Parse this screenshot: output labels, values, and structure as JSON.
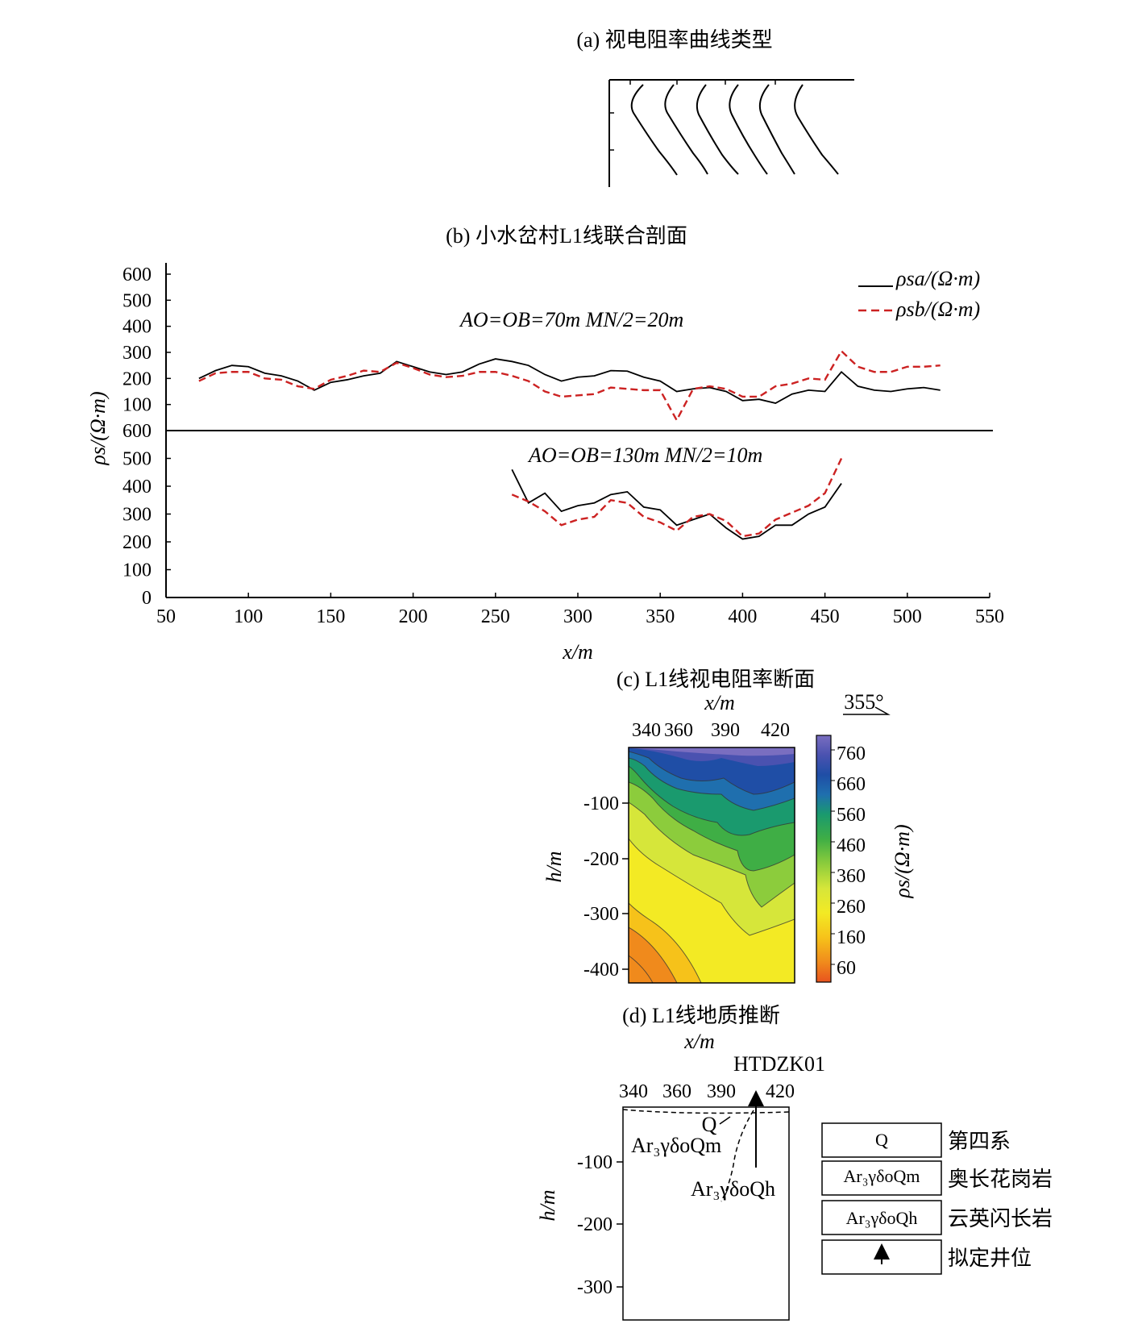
{
  "panel_a": {
    "title": "(a) 视电阻率曲线类型"
  },
  "panel_b": {
    "title": "(b) 小水岔村L1线联合剖面",
    "ylabel": "ρs/(Ω·m)",
    "xlabel": "x/m",
    "upper_annotation": "AO=OB=70m MN/2=20m",
    "lower_annotation": "AO=OB=130m MN/2=10m",
    "legend": [
      {
        "label": "ρsa/(Ω·m)",
        "color": "#000000",
        "dash": "solid"
      },
      {
        "label": "ρsb/(Ω·m)",
        "color": "#cc2222",
        "dash": "dashed"
      }
    ],
    "x_ticks": [
      "50",
      "100",
      "150",
      "200",
      "250",
      "300",
      "350",
      "400",
      "450",
      "500",
      "550"
    ],
    "y_ticks_upper": [
      "100",
      "200",
      "300",
      "400",
      "500",
      "600"
    ],
    "y_ticks_lower": [
      "0",
      "100",
      "200",
      "300",
      "400",
      "500",
      "600"
    ]
  },
  "panel_c": {
    "title": "(c) L1线视电阻率断面",
    "xlabel": "x/m",
    "x_ticks": [
      "340",
      "360",
      "390",
      "420"
    ],
    "ylabel": "h/m",
    "y_ticks": [
      "-100",
      "-200",
      "-300",
      "-400"
    ],
    "strike": "355°",
    "colorbar_label": "ρs/(Ω·m)",
    "colorbar_ticks": [
      "760",
      "660",
      "560",
      "460",
      "360",
      "260",
      "160",
      "60"
    ],
    "colorbar_colors": [
      "#e8531e",
      "#f08a1c",
      "#f6c21a",
      "#f3ea24",
      "#d6e63a",
      "#8ccc3c",
      "#3fae45",
      "#1a9a6e",
      "#1f6fae",
      "#1f4ea6",
      "#4a52b0",
      "#7a6ec0"
    ]
  },
  "panel_d": {
    "title": "(d) L1线地质推断",
    "xlabel": "x/m",
    "x_ticks": [
      "340",
      "360",
      "390",
      "420"
    ],
    "ylabel": "h/m",
    "y_ticks": [
      "-100",
      "-200",
      "-300"
    ],
    "well_label": "HTDZK01",
    "labels": {
      "q": "Q",
      "qm": "Ar₃γδoQm",
      "qh": "Ar₃γδoQh"
    },
    "legend": [
      {
        "symbol": "Q",
        "name": "第四系"
      },
      {
        "symbol": "Ar₃γδoQm",
        "name": "奥长花岗岩"
      },
      {
        "symbol": "Ar₃γδoQh",
        "name": "云英闪长岩"
      },
      {
        "symbol": "arrow-up-icon",
        "name": "拟定井位"
      }
    ]
  },
  "chart_data": [
    {
      "type": "line",
      "title": "(b) 小水岔村L1线联合剖面",
      "subtitle": "AO=OB=70m MN/2=20m",
      "xlabel": "x/m",
      "ylabel": "ρs/(Ω·m)",
      "xlim": [
        50,
        550
      ],
      "ylim": [
        0,
        600
      ],
      "x": [
        70,
        80,
        90,
        100,
        110,
        120,
        130,
        140,
        150,
        160,
        170,
        180,
        190,
        200,
        210,
        220,
        230,
        240,
        250,
        260,
        270,
        280,
        290,
        300,
        310,
        320,
        330,
        340,
        350,
        360,
        370,
        380,
        390,
        400,
        410,
        420,
        430,
        440,
        450,
        460,
        470,
        480,
        490,
        500,
        510,
        520
      ],
      "series": [
        {
          "name": "ρsa/(Ω·m)",
          "color": "#000000",
          "values": [
            200,
            230,
            250,
            245,
            220,
            210,
            190,
            155,
            185,
            195,
            210,
            220,
            265,
            245,
            225,
            215,
            225,
            255,
            275,
            265,
            250,
            215,
            190,
            205,
            210,
            230,
            228,
            205,
            190,
            150,
            160,
            165,
            150,
            115,
            120,
            105,
            140,
            155,
            150,
            225,
            170,
            155,
            150,
            160,
            165,
            155
          ]
        },
        {
          "name": "ρsb/(Ω·m)",
          "color": "#cc2222",
          "values": [
            190,
            220,
            225,
            225,
            200,
            195,
            170,
            160,
            195,
            210,
            230,
            225,
            260,
            240,
            215,
            205,
            210,
            225,
            225,
            210,
            190,
            150,
            130,
            135,
            140,
            165,
            160,
            155,
            155,
            40,
            160,
            170,
            160,
            130,
            130,
            170,
            180,
            200,
            195,
            305,
            245,
            225,
            225,
            245,
            245,
            250
          ]
        }
      ]
    },
    {
      "type": "line",
      "subtitle": "AO=OB=130m MN/2=10m",
      "xlabel": "x/m",
      "ylabel": "ρs/(Ω·m)",
      "xlim": [
        50,
        550
      ],
      "ylim": [
        0,
        600
      ],
      "x": [
        260,
        270,
        280,
        290,
        300,
        310,
        320,
        330,
        340,
        350,
        360,
        370,
        380,
        390,
        400,
        410,
        420,
        430,
        440,
        450,
        460
      ],
      "series": [
        {
          "name": "ρsa/(Ω·m)",
          "color": "#000000",
          "values": [
            460,
            340,
            375,
            310,
            330,
            340,
            370,
            380,
            325,
            315,
            260,
            280,
            300,
            250,
            210,
            220,
            260,
            260,
            300,
            325,
            410
          ]
        },
        {
          "name": "ρsb/(Ω·m)",
          "color": "#cc2222",
          "values": [
            370,
            345,
            310,
            260,
            280,
            290,
            350,
            340,
            290,
            270,
            240,
            290,
            300,
            275,
            220,
            230,
            280,
            305,
            330,
            375,
            500
          ]
        }
      ]
    }
  ]
}
